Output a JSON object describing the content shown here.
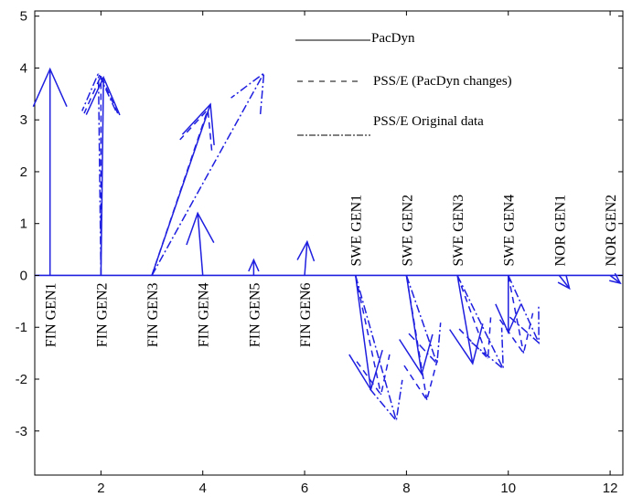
{
  "chart_data": {
    "type": "line",
    "title": "",
    "xlabel": "",
    "ylabel": "",
    "xlim": [
      0.7,
      12.25
    ],
    "ylim": [
      -3.85,
      5.1
    ],
    "xticks": [
      2,
      4,
      6,
      8,
      10,
      12
    ],
    "yticks": [
      -3,
      -2,
      -1,
      0,
      1,
      2,
      3,
      4,
      5
    ],
    "grid": false,
    "legend_position": "top-center",
    "line_color": "#1f1fe0",
    "legend": [
      {
        "name": "PacDyn",
        "style": "solid"
      },
      {
        "name": "PSS/E (PacDyn changes)",
        "style": "dashed"
      },
      {
        "name": "PSS/E Original data",
        "style": "dashdot"
      }
    ],
    "generators": [
      {
        "label": "FIN GEN1",
        "x": 1,
        "label_side": "below"
      },
      {
        "label": "FIN GEN2",
        "x": 2,
        "label_side": "below"
      },
      {
        "label": "FIN GEN3",
        "x": 3,
        "label_side": "below"
      },
      {
        "label": "FIN GEN4",
        "x": 4,
        "label_side": "below"
      },
      {
        "label": "FIN GEN5",
        "x": 5,
        "label_side": "below"
      },
      {
        "label": "FIN GEN6",
        "x": 6,
        "label_side": "below"
      },
      {
        "label": "SWE GEN1",
        "x": 7,
        "label_side": "above"
      },
      {
        "label": "SWE GEN2",
        "x": 8,
        "label_side": "above"
      },
      {
        "label": "SWE GEN3",
        "x": 9,
        "label_side": "above"
      },
      {
        "label": "SWE GEN4",
        "x": 10,
        "label_side": "above"
      },
      {
        "label": "NOR GEN1",
        "x": 11,
        "label_side": "above"
      },
      {
        "label": "NOR GEN2",
        "x": 12,
        "label_side": "above"
      }
    ],
    "series": [
      {
        "name": "PacDyn",
        "style": "solid",
        "vectors": [
          {
            "from": [
              1,
              0
            ],
            "to": [
              1,
              3.98
            ]
          },
          {
            "from": [
              2,
              0
            ],
            "to": [
              2.05,
              3.82
            ]
          },
          {
            "from": [
              3,
              0
            ],
            "to": [
              4.15,
              3.3
            ]
          },
          {
            "from": [
              4,
              0
            ],
            "to": [
              3.9,
              1.2
            ]
          },
          {
            "from": [
              5,
              0
            ],
            "to": [
              5,
              0.3
            ]
          },
          {
            "from": [
              6,
              0
            ],
            "to": [
              6.05,
              0.65
            ]
          },
          {
            "from": [
              7,
              0
            ],
            "to": [
              7.3,
              -2.2
            ]
          },
          {
            "from": [
              8,
              0
            ],
            "to": [
              8.3,
              -1.9
            ]
          },
          {
            "from": [
              9,
              0
            ],
            "to": [
              9.3,
              -1.7
            ]
          },
          {
            "from": [
              10,
              0
            ],
            "to": [
              10.0,
              -1.1
            ]
          },
          {
            "from": [
              11,
              0
            ],
            "to": [
              11.2,
              -0.25
            ]
          },
          {
            "from": [
              12,
              0
            ],
            "to": [
              12.2,
              -0.15
            ]
          }
        ]
      },
      {
        "name": "PSS/E (PacDyn changes)",
        "style": "dashed",
        "vectors": [
          {
            "from": [
              2,
              0
            ],
            "to": [
              2.0,
              3.85
            ]
          },
          {
            "from": [
              3,
              0
            ],
            "to": [
              4.1,
              3.2
            ]
          },
          {
            "from": [
              7,
              0
            ],
            "to": [
              7.5,
              -2.3
            ]
          },
          {
            "from": [
              8,
              0
            ],
            "to": [
              8.4,
              -2.4
            ]
          },
          {
            "from": [
              9,
              0
            ],
            "to": [
              9.6,
              -1.6
            ]
          },
          {
            "from": [
              10,
              0
            ],
            "to": [
              10.3,
              -1.5
            ]
          }
        ]
      },
      {
        "name": "PSS/E Original data",
        "style": "dashdot",
        "vectors": [
          {
            "from": [
              2,
              0
            ],
            "to": [
              1.95,
              3.9
            ]
          },
          {
            "from": [
              3,
              0
            ],
            "to": [
              5.2,
              3.9
            ]
          },
          {
            "from": [
              7,
              0
            ],
            "to": [
              7.8,
              -2.8
            ]
          },
          {
            "from": [
              8,
              0
            ],
            "to": [
              8.6,
              -1.7
            ]
          },
          {
            "from": [
              9,
              0
            ],
            "to": [
              9.9,
              -1.8
            ]
          },
          {
            "from": [
              10,
              0
            ],
            "to": [
              10.6,
              -1.3
            ]
          }
        ]
      }
    ]
  }
}
